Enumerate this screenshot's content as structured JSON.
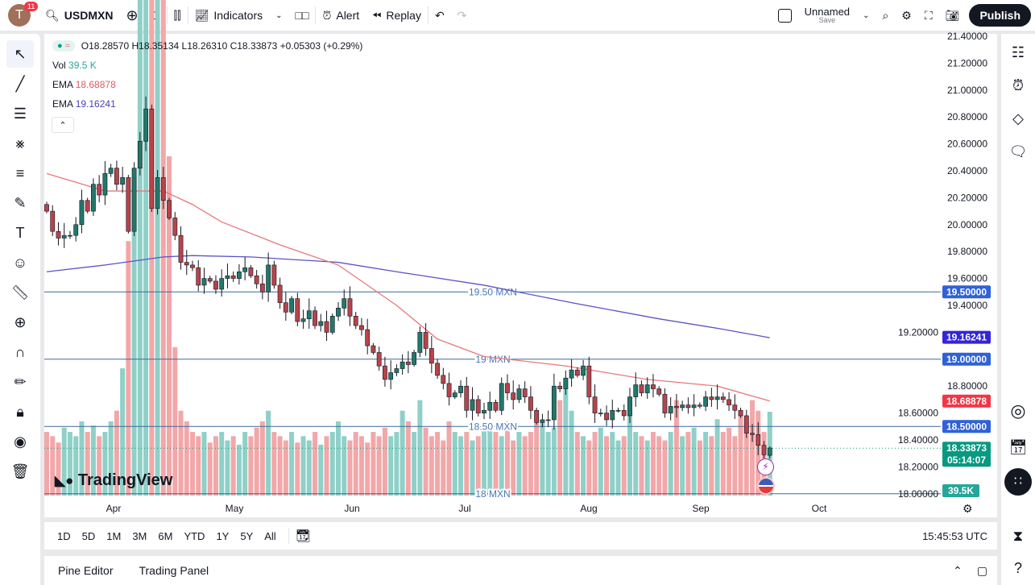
{
  "topbar": {
    "avatar_letter": "T",
    "notifications": "11",
    "symbol": "USDMXN",
    "interval": "D",
    "indicators": "Indicators",
    "alert": "Alert",
    "replay": "Replay",
    "layout_name": "Unnamed",
    "layout_save": "Save",
    "publish": "Publish"
  },
  "legend": {
    "ohlc": "O18.28570 H18.35134 L18.26310 C18.33873 +0.05303 (+0.29%)",
    "vol_label": "Vol",
    "vol_value": "39.5 K",
    "ema1_label": "EMA",
    "ema1_value": "18.68878",
    "ema2_label": "EMA",
    "ema2_value": "19.16241"
  },
  "colors": {
    "up": "#22786a",
    "down": "#b8434a",
    "ema_fast": "#e8777c",
    "ema_slow": "#5b53c8",
    "hline": "#3d6a98",
    "tag_blue": "#2f62d8",
    "tag_ema_slow": "#3425d9",
    "tag_ema_fast": "#f23645",
    "tag_last": "#089981",
    "tag_vol": "#26a69a"
  },
  "watermark": "TradingView",
  "chart_data": {
    "type": "candlestick",
    "symbol": "USDMXN",
    "interval": "D",
    "ylim": [
      18.0,
      21.4
    ],
    "y_ticks": [
      "21.40000",
      "21.20000",
      "21.00000",
      "20.80000",
      "20.60000",
      "20.40000",
      "20.20000",
      "20.00000",
      "19.80000",
      "19.60000",
      "19.40000",
      "19.20000",
      "18.80000",
      "18.60000",
      "18.40000",
      "18.20000",
      "18.00000"
    ],
    "x_ticks": [
      "Apr",
      "May",
      "Jun",
      "Jul",
      "Aug",
      "Sep",
      "Oct"
    ],
    "closes": [
      20.1,
      19.95,
      19.9,
      19.92,
      19.92,
      20.0,
      20.18,
      20.1,
      20.3,
      20.22,
      20.38,
      20.42,
      20.3,
      20.35,
      19.95,
      20.42,
      20.62,
      20.86,
      20.12,
      20.35,
      20.18,
      20.05,
      19.92,
      19.72,
      19.7,
      19.68,
      19.55,
      19.6,
      19.58,
      19.52,
      19.6,
      19.62,
      19.6,
      19.65,
      19.68,
      19.62,
      19.56,
      19.5,
      19.7,
      19.55,
      19.42,
      19.35,
      19.45,
      19.28,
      19.3,
      19.36,
      19.25,
      19.28,
      19.2,
      19.32,
      19.38,
      19.45,
      19.32,
      19.25,
      19.22,
      19.1,
      19.05,
      18.95,
      18.85,
      18.9,
      18.93,
      18.98,
      18.96,
      19.05,
      19.2,
      19.08,
      18.97,
      18.88,
      18.82,
      18.72,
      18.75,
      18.8,
      18.62,
      18.7,
      18.6,
      18.62,
      18.68,
      18.62,
      18.82,
      18.75,
      18.7,
      18.78,
      18.72,
      18.62,
      18.53,
      18.55,
      18.55,
      18.8,
      18.78,
      18.86,
      18.92,
      18.88,
      18.95,
      18.72,
      18.6,
      18.6,
      18.55,
      18.62,
      18.62,
      18.58,
      18.72,
      18.81,
      18.75,
      18.81,
      18.78,
      18.74,
      18.6,
      18.65,
      18.64,
      18.66,
      18.64,
      18.66,
      18.65,
      18.72,
      18.7,
      18.72,
      18.7,
      18.66,
      18.62,
      18.58,
      18.45,
      18.44,
      18.36,
      18.29,
      18.34
    ],
    "last": {
      "open": 18.2857,
      "high": 18.35134,
      "low": 18.2631,
      "close": 18.33873,
      "change": 0.05303,
      "change_pct": 0.29
    },
    "volume_k": [
      30,
      28,
      25,
      32,
      30,
      28,
      35,
      30,
      33,
      28,
      30,
      35,
      40,
      60,
      120,
      150,
      250,
      370,
      300,
      370,
      250,
      160,
      70,
      40,
      35,
      30,
      28,
      30,
      25,
      28,
      30,
      26,
      28,
      24,
      30,
      28,
      32,
      35,
      40,
      30,
      28,
      26,
      30,
      25,
      28,
      26,
      30,
      24,
      28,
      30,
      35,
      28,
      26,
      30,
      28,
      25,
      30,
      28,
      32,
      28,
      30,
      40,
      35,
      30,
      45,
      32,
      28,
      30,
      26,
      35,
      30,
      28,
      30,
      26,
      28,
      32,
      34,
      30,
      28,
      35,
      26,
      30,
      28,
      30,
      40,
      35,
      30,
      32,
      45,
      55,
      40,
      30,
      28,
      26,
      30,
      32,
      28,
      30,
      26,
      28,
      45,
      30,
      28,
      26,
      30,
      28,
      26,
      30,
      45,
      28,
      30,
      32,
      26,
      30,
      28,
      36,
      30,
      32,
      28,
      40,
      35,
      45,
      40,
      30,
      39.5
    ],
    "volume_last": "39.5K",
    "ema_fast": {
      "last": "18.68878",
      "points": [
        [
          0,
          20.38
        ],
        [
          10,
          20.25
        ],
        [
          20,
          20.25
        ],
        [
          25,
          20.15
        ],
        [
          30,
          20.02
        ],
        [
          40,
          19.85
        ],
        [
          50,
          19.7
        ],
        [
          60,
          19.4
        ],
        [
          67,
          19.15
        ],
        [
          75,
          19.02
        ],
        [
          89,
          18.95
        ],
        [
          103,
          18.85
        ],
        [
          115,
          18.8
        ],
        [
          124,
          18.69
        ]
      ]
    },
    "ema_slow": {
      "last": "19.16241",
      "points": [
        [
          0,
          19.65
        ],
        [
          10,
          19.7
        ],
        [
          20,
          19.76
        ],
        [
          25,
          19.77
        ],
        [
          35,
          19.76
        ],
        [
          50,
          19.72
        ],
        [
          60,
          19.65
        ],
        [
          75,
          19.55
        ],
        [
          90,
          19.42
        ],
        [
          105,
          19.3
        ],
        [
          115,
          19.23
        ],
        [
          124,
          19.16
        ]
      ]
    },
    "hlines": [
      {
        "price": 19.5,
        "label": "19.50 MXN",
        "tag": "19.50000"
      },
      {
        "price": 19.0,
        "label": "19 MXN",
        "tag": "19.00000"
      },
      {
        "price": 18.5,
        "label": "18.50 MXN",
        "tag": "18.50000"
      },
      {
        "price": 18.0,
        "label": "18 MXN"
      }
    ],
    "last_price_tag": "18.33873",
    "countdown": "05:14:07"
  },
  "ranges": [
    "1D",
    "5D",
    "1M",
    "3M",
    "6M",
    "YTD",
    "1Y",
    "5Y",
    "All"
  ],
  "clock": "15:45:53 UTC",
  "bottom": {
    "pine": "Pine Editor",
    "panel": "Trading Panel"
  }
}
